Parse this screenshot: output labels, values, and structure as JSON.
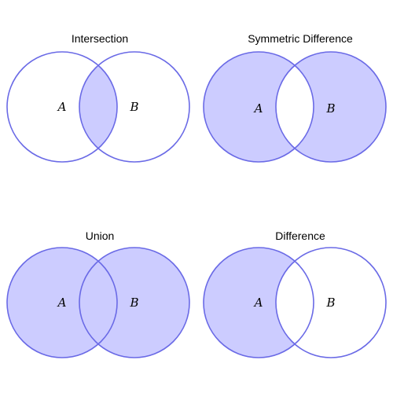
{
  "colors": {
    "fill": "#ccccff",
    "stroke": "#6a6ae6",
    "background": "#ffffff"
  },
  "panels": [
    {
      "title": "Intersection",
      "set_a": "A",
      "set_b": "B",
      "shaded": "intersection"
    },
    {
      "title": "Symmetric Difference",
      "set_a": "A",
      "set_b": "B",
      "shaded": "symmetric-difference"
    },
    {
      "title": "Union",
      "set_a": "A",
      "set_b": "B",
      "shaded": "union"
    },
    {
      "title": "Difference",
      "set_a": "A",
      "set_b": "B",
      "shaded": "difference"
    }
  ]
}
